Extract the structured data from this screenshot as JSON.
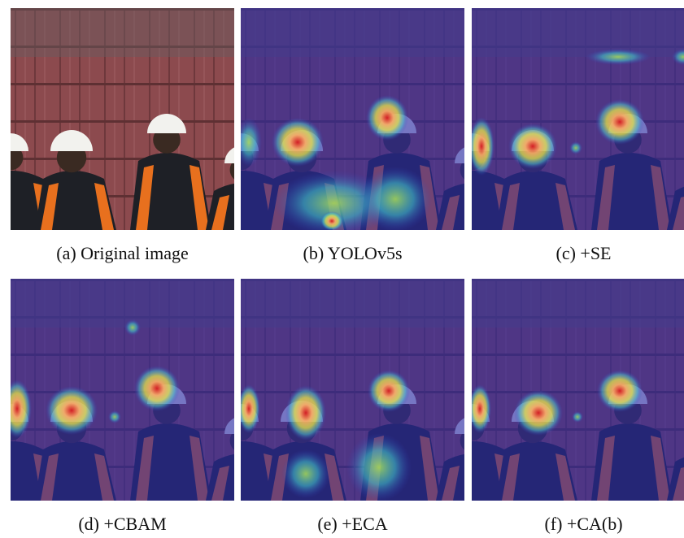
{
  "panels": [
    {
      "caption": "(a) Original image"
    },
    {
      "caption": "(b) YOLOv5s"
    },
    {
      "caption": "(c) +SE"
    },
    {
      "caption": "(d) +CBAM"
    },
    {
      "caption": "(e) +ECA"
    },
    {
      "caption": "(f) +CA(b)"
    }
  ]
}
